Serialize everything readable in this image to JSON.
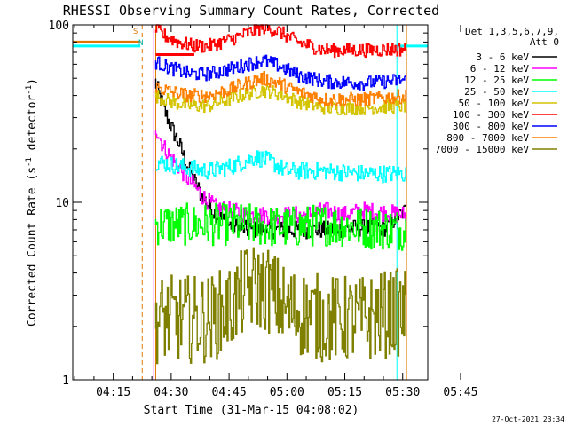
{
  "chart_data": {
    "type": "line",
    "title": "RHESSI Observing Summary Count Rates, Corrected",
    "xlabel": "Start Time (31-Mar-15 04:08:02)",
    "ylabel": "Corrected Count Rate (s⁻¹ detector⁻¹)",
    "ylabel_parts": [
      "Corrected Count Rate (s",
      "-1",
      " detector",
      "-1",
      ")"
    ],
    "yscale": "log",
    "ylim": [
      1,
      100
    ],
    "xlim_minutes": [
      4.5,
      96.5
    ],
    "x_ticks": [
      {
        "label": "04:15",
        "minutes": 15
      },
      {
        "label": "04:30",
        "minutes": 30
      },
      {
        "label": "04:45",
        "minutes": 45
      },
      {
        "label": "05:00",
        "minutes": 60
      },
      {
        "label": "05:15",
        "minutes": 75
      },
      {
        "label": "05:30",
        "minutes": 90
      },
      {
        "label": "05:45",
        "minutes": 105
      }
    ],
    "y_ticks": [
      {
        "label": "1",
        "value": 1
      },
      {
        "label": "10",
        "value": 10
      },
      {
        "label": "100",
        "value": 100
      }
    ],
    "legend": {
      "position": "top-right",
      "header": [
        "Det 1,3,5,6,7,9,",
        "Att 0"
      ]
    },
    "annotations": {
      "top_labels": [
        "S",
        "N"
      ],
      "timestamp": "27-Oct-2021 23:34"
    },
    "vertical_markers": [
      {
        "minutes": 22.5,
        "color": "#e07800",
        "style": "dashed"
      },
      {
        "minutes": 25.5,
        "color": "#ff00ff",
        "style": "solid"
      },
      {
        "minutes": 26.0,
        "color": "#e07800",
        "style": "solid"
      },
      {
        "minutes": 88.5,
        "color": "#00ffff",
        "style": "solid"
      },
      {
        "minutes": 91.0,
        "color": "#e07800",
        "style": "solid"
      },
      {
        "minutes": 103.0,
        "color": "#00ffff",
        "style": "dashed"
      }
    ],
    "horizontal_bars": [
      {
        "x": [
          0,
          22
        ],
        "value": 76,
        "color": "#00ffff"
      },
      {
        "x": [
          0,
          22
        ],
        "value": 80,
        "color": "#e07800"
      },
      {
        "x": [
          26,
          36
        ],
        "value": 68,
        "color": "#ff0000"
      },
      {
        "x": [
          88,
          104
        ],
        "value": 76,
        "color": "#00ffff"
      }
    ],
    "series": [
      {
        "name": "3 - 6 keV",
        "color": "#000000",
        "noise": 0.05,
        "points": [
          [
            26,
            48
          ],
          [
            28,
            35
          ],
          [
            30,
            27
          ],
          [
            32,
            22
          ],
          [
            34,
            17
          ],
          [
            36,
            13.5
          ],
          [
            38,
            11
          ],
          [
            40,
            9.5
          ],
          [
            42,
            8.5
          ],
          [
            45,
            7.5
          ],
          [
            50,
            7
          ],
          [
            60,
            7
          ],
          [
            70,
            7
          ],
          [
            80,
            7.2
          ],
          [
            86,
            7.2
          ],
          [
            88,
            8
          ],
          [
            91,
            9
          ]
        ]
      },
      {
        "name": "6 - 12 keV",
        "color": "#ff00ff",
        "noise": 0.05,
        "points": [
          [
            26,
            27
          ],
          [
            28,
            21
          ],
          [
            30,
            18
          ],
          [
            32,
            16
          ],
          [
            34,
            14
          ],
          [
            36,
            12.5
          ],
          [
            38,
            11
          ],
          [
            40,
            10
          ],
          [
            42,
            9.3
          ],
          [
            45,
            9
          ],
          [
            50,
            8.5
          ],
          [
            60,
            8.5
          ],
          [
            65,
            8.5
          ],
          [
            70,
            9
          ],
          [
            75,
            8.5
          ],
          [
            80,
            9
          ],
          [
            91,
            8.5
          ]
        ]
      },
      {
        "name": "12 - 25 keV",
        "color": "#00ff00",
        "noise": 0.12,
        "points": [
          [
            26,
            7.5
          ],
          [
            40,
            7.5
          ],
          [
            50,
            7.5
          ],
          [
            60,
            7.2
          ],
          [
            70,
            7.5
          ],
          [
            80,
            7.2
          ],
          [
            91,
            7
          ]
        ]
      },
      {
        "name": "25 - 50 keV",
        "color": "#00ffff",
        "noise": 0.05,
        "points": [
          [
            26,
            17
          ],
          [
            32,
            16
          ],
          [
            40,
            15
          ],
          [
            46,
            16
          ],
          [
            52,
            18
          ],
          [
            56,
            17
          ],
          [
            60,
            15
          ],
          [
            70,
            15
          ],
          [
            80,
            14.5
          ],
          [
            91,
            14.5
          ]
        ]
      },
      {
        "name": "50 - 100 keV",
        "color": "#d4c400",
        "noise": 0.04,
        "points": [
          [
            26,
            40
          ],
          [
            30,
            37
          ],
          [
            35,
            35
          ],
          [
            40,
            35
          ],
          [
            45,
            38
          ],
          [
            50,
            41
          ],
          [
            54,
            43
          ],
          [
            58,
            41
          ],
          [
            63,
            37
          ],
          [
            70,
            34
          ],
          [
            80,
            34
          ],
          [
            86,
            34.5
          ],
          [
            91,
            35
          ]
        ]
      },
      {
        "name": "100 - 300 keV",
        "color": "#ff0000",
        "noise": 0.04,
        "points": [
          [
            26,
            96
          ],
          [
            28,
            88
          ],
          [
            32,
            80
          ],
          [
            36,
            76
          ],
          [
            40,
            76
          ],
          [
            45,
            82
          ],
          [
            50,
            90
          ],
          [
            54,
            97
          ],
          [
            58,
            92
          ],
          [
            63,
            80
          ],
          [
            70,
            72
          ],
          [
            80,
            72
          ],
          [
            91,
            73
          ]
        ]
      },
      {
        "name": "300 - 800 keV",
        "color": "#0000ff",
        "noise": 0.04,
        "points": [
          [
            26,
            62
          ],
          [
            30,
            57
          ],
          [
            35,
            53
          ],
          [
            40,
            53
          ],
          [
            45,
            56
          ],
          [
            50,
            60
          ],
          [
            54,
            63
          ],
          [
            58,
            59
          ],
          [
            63,
            52
          ],
          [
            70,
            48
          ],
          [
            80,
            47
          ],
          [
            86,
            48
          ],
          [
            91,
            49
          ]
        ]
      },
      {
        "name": "800 - 7000 keV",
        "color": "#ff8000",
        "noise": 0.04,
        "points": [
          [
            26,
            45
          ],
          [
            30,
            42
          ],
          [
            35,
            40
          ],
          [
            40,
            40
          ],
          [
            45,
            43
          ],
          [
            50,
            47
          ],
          [
            54,
            50
          ],
          [
            58,
            47
          ],
          [
            63,
            42
          ],
          [
            70,
            38
          ],
          [
            80,
            38
          ],
          [
            86,
            39
          ],
          [
            91,
            39.5
          ]
        ]
      },
      {
        "name": "7000 - 15000 keV",
        "color": "#808000",
        "noise": 0.25,
        "points": [
          [
            26,
            2.2
          ],
          [
            40,
            2.2
          ],
          [
            45,
            2.5
          ],
          [
            50,
            3.3
          ],
          [
            55,
            3.3
          ],
          [
            60,
            2.5
          ],
          [
            70,
            2.2
          ],
          [
            80,
            2.2
          ],
          [
            88,
            2.4
          ],
          [
            91,
            2.4
          ]
        ]
      }
    ]
  }
}
